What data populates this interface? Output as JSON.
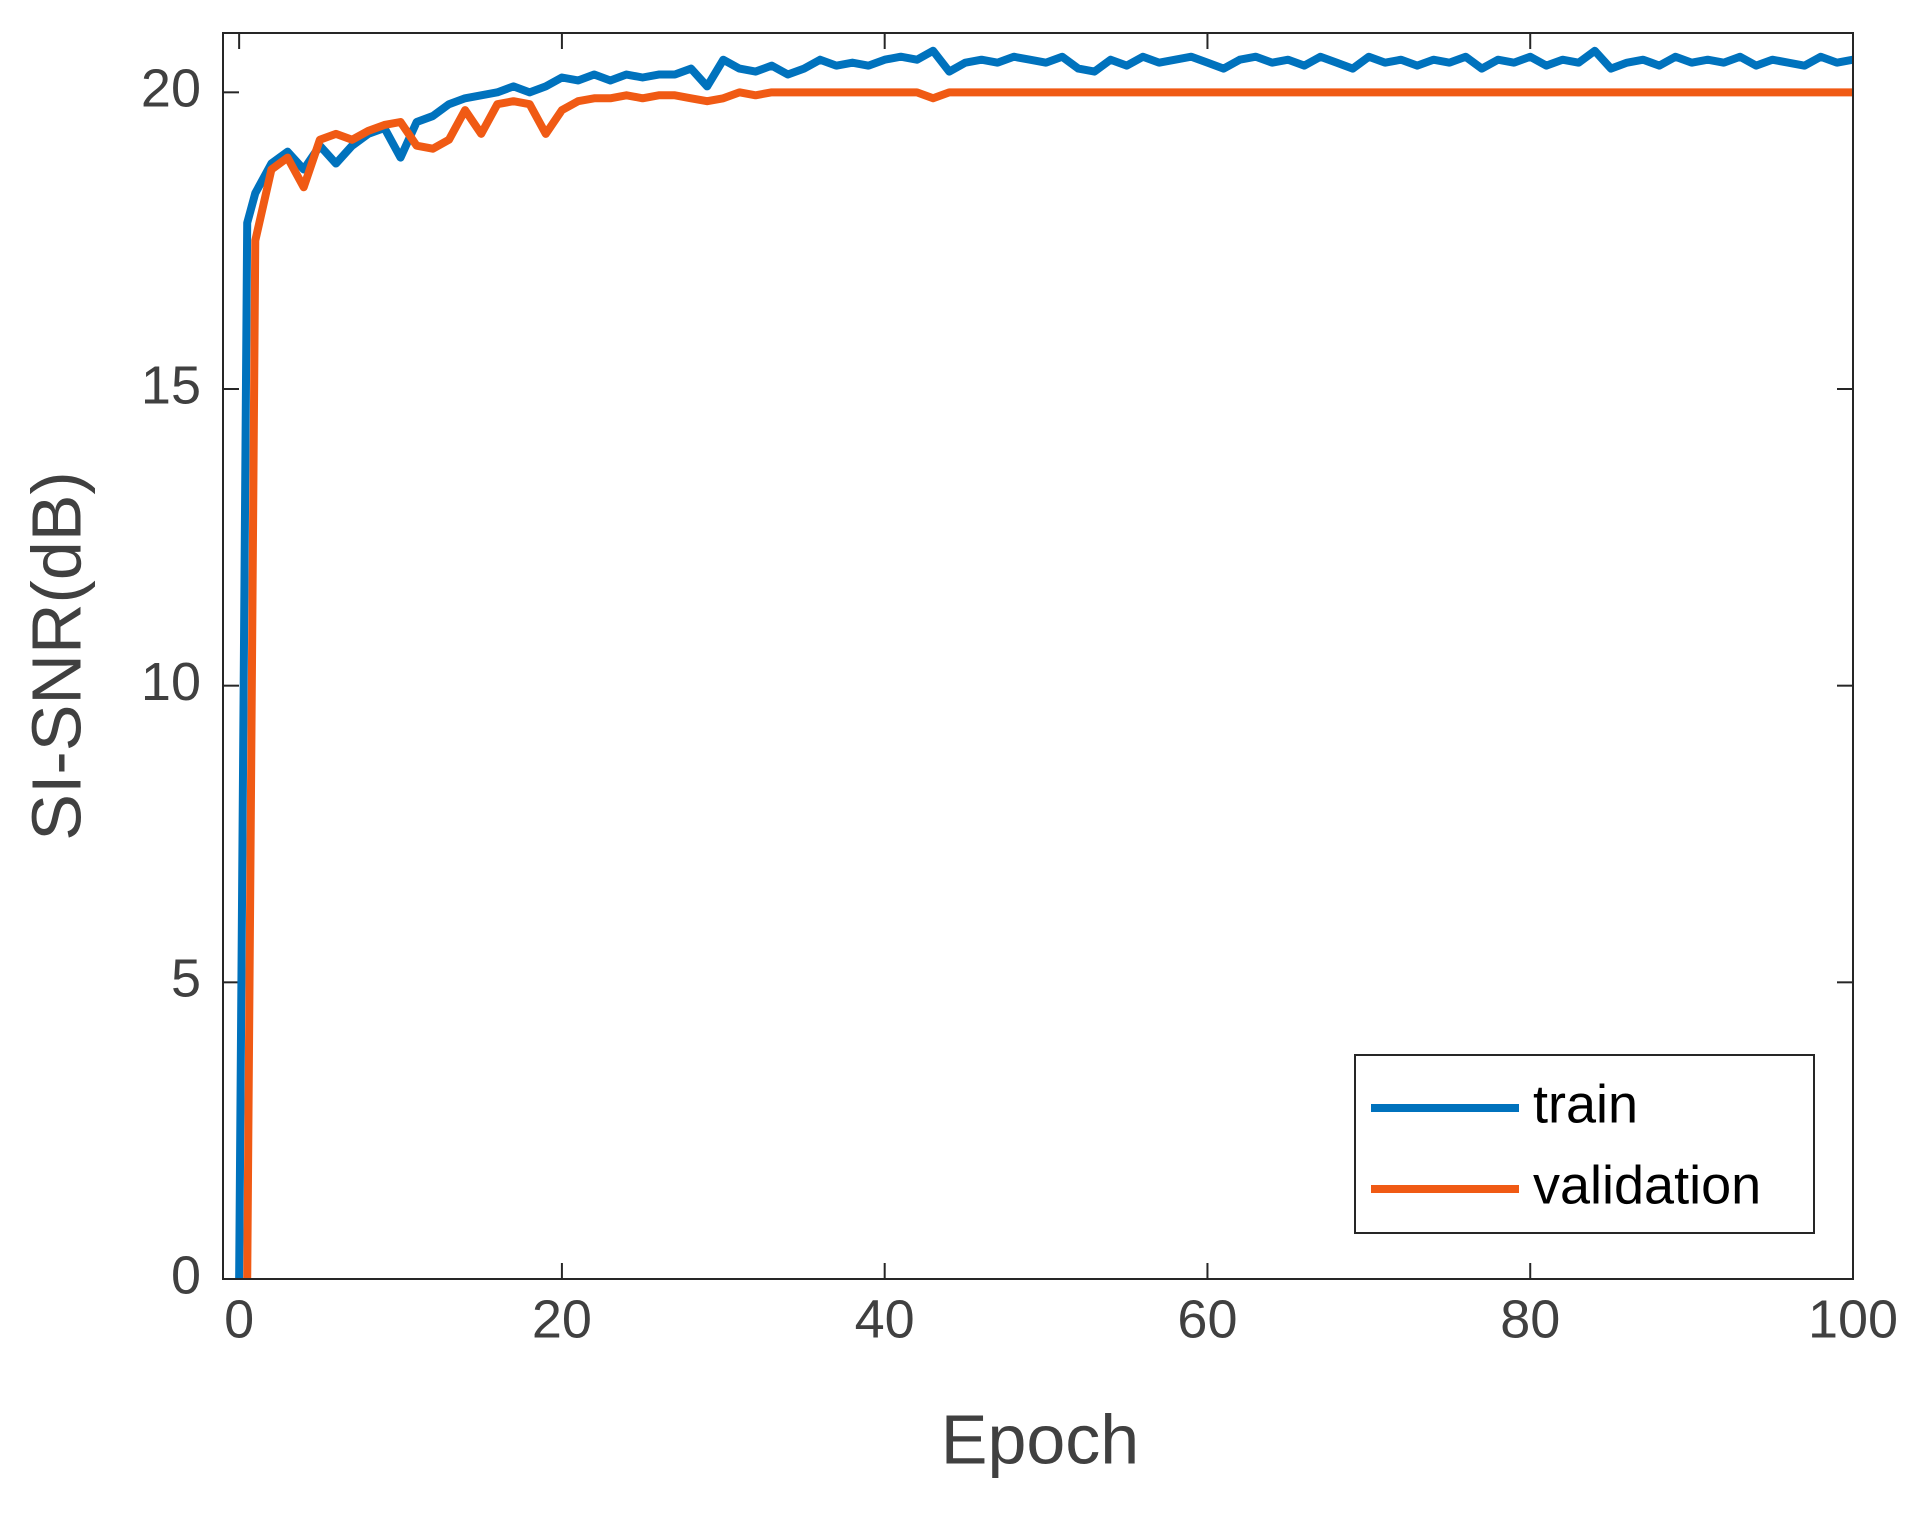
{
  "chart_data": {
    "type": "line",
    "xlabel": "Epoch",
    "ylabel": "SI-SNR(dB)",
    "x": [
      0,
      0.5,
      1,
      2,
      3,
      4,
      5,
      6,
      7,
      8,
      9,
      10,
      11,
      12,
      13,
      14,
      15,
      16,
      17,
      18,
      19,
      20,
      21,
      22,
      23,
      24,
      25,
      26,
      27,
      28,
      29,
      30,
      31,
      32,
      33,
      34,
      35,
      36,
      37,
      38,
      39,
      40,
      41,
      42,
      43,
      44,
      45,
      46,
      47,
      48,
      49,
      50,
      51,
      52,
      53,
      54,
      55,
      56,
      57,
      58,
      59,
      60,
      61,
      62,
      63,
      64,
      65,
      66,
      67,
      68,
      69,
      70,
      71,
      72,
      73,
      74,
      75,
      76,
      77,
      78,
      79,
      80,
      81,
      82,
      83,
      84,
      85,
      86,
      87,
      88,
      89,
      90,
      91,
      92,
      93,
      94,
      95,
      96,
      97,
      98,
      99,
      100
    ],
    "series": [
      {
        "name": "train",
        "color": "#0072bd",
        "values": [
          0,
          17.8,
          18.3,
          18.8,
          19.0,
          18.7,
          19.1,
          18.8,
          19.1,
          19.3,
          19.4,
          18.9,
          19.5,
          19.6,
          19.8,
          19.9,
          19.95,
          20.0,
          20.1,
          20.0,
          20.1,
          20.25,
          20.2,
          20.3,
          20.2,
          20.3,
          20.25,
          20.3,
          20.3,
          20.4,
          20.1,
          20.55,
          20.4,
          20.35,
          20.45,
          20.3,
          20.4,
          20.55,
          20.45,
          20.5,
          20.45,
          20.55,
          20.6,
          20.55,
          20.7,
          20.35,
          20.5,
          20.55,
          20.5,
          20.6,
          20.55,
          20.5,
          20.6,
          20.4,
          20.35,
          20.55,
          20.45,
          20.6,
          20.5,
          20.55,
          20.6,
          20.5,
          20.4,
          20.55,
          20.6,
          20.5,
          20.55,
          20.45,
          20.6,
          20.5,
          20.4,
          20.6,
          20.5,
          20.55,
          20.45,
          20.55,
          20.5,
          20.6,
          20.4,
          20.55,
          20.5,
          20.6,
          20.45,
          20.55,
          20.5,
          20.7,
          20.4,
          20.5,
          20.55,
          20.45,
          20.6,
          20.5,
          20.55,
          20.5,
          20.6,
          20.45,
          20.55,
          20.5,
          20.45,
          20.6,
          20.5,
          20.55
        ]
      },
      {
        "name": "validation",
        "color": "#f05a14",
        "values": [
          null,
          0,
          17.5,
          18.7,
          18.9,
          18.4,
          19.2,
          19.3,
          19.2,
          19.35,
          19.45,
          19.5,
          19.1,
          19.05,
          19.2,
          19.7,
          19.3,
          19.8,
          19.85,
          19.8,
          19.3,
          19.7,
          19.85,
          19.9,
          19.9,
          19.95,
          19.9,
          19.95,
          19.95,
          19.9,
          19.85,
          19.9,
          20.0,
          19.95,
          20.0,
          20.0,
          20.0,
          20.0,
          20.0,
          20.0,
          20.0,
          20.0,
          20.0,
          20.0,
          19.9,
          20.0,
          20.0,
          20.0,
          20.0,
          20.0,
          20.0,
          20.0,
          20.0,
          20.0,
          20.0,
          20.0,
          20.0,
          20.0,
          20.0,
          20.0,
          20.0,
          20.0,
          20.0,
          20.0,
          20.0,
          20.0,
          20.0,
          20.0,
          20.0,
          20.0,
          20.0,
          20.0,
          20.0,
          20.0,
          20.0,
          20.0,
          20.0,
          20.0,
          20.0,
          20.0,
          20.0,
          20.0,
          20.0,
          20.0,
          20.0,
          20.0,
          20.0,
          20.0,
          20.0,
          20.0,
          20.0,
          20.0,
          20.0,
          20.0,
          20.0,
          20.0,
          20.0,
          20.0,
          20.0,
          20.0,
          20.0,
          20.0
        ]
      }
    ],
    "xlim": [
      -1,
      100
    ],
    "xticks": [
      0,
      20,
      40,
      60,
      80,
      100
    ],
    "ylim": [
      0,
      21
    ],
    "yticks": [
      0,
      5,
      10,
      15,
      20
    ],
    "grid": false,
    "legend": "lower right"
  }
}
